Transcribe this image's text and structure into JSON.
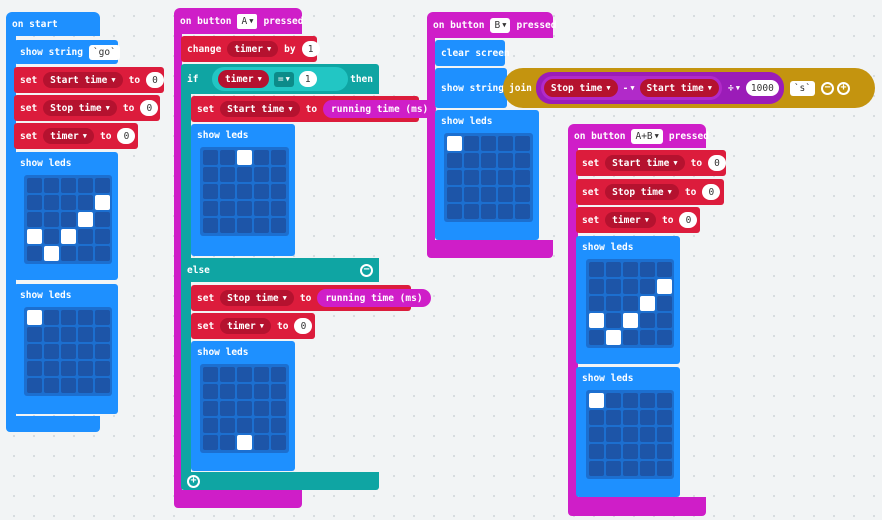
{
  "on_start": {
    "hat": "on start",
    "show_string": "show string",
    "go_value": "go",
    "set1": {
      "keyword": "set",
      "var": "Start time",
      "to": "to",
      "value": "0"
    },
    "set2": {
      "keyword": "set",
      "var": "Stop time",
      "to": "to",
      "value": "0"
    },
    "set3": {
      "keyword": "set",
      "var": "timer",
      "to": "to",
      "value": "0"
    },
    "show_leds_1": "show leds",
    "leds_1": [
      [
        0,
        0,
        0,
        0,
        0
      ],
      [
        0,
        0,
        0,
        0,
        1
      ],
      [
        0,
        0,
        0,
        1,
        0
      ],
      [
        1,
        0,
        1,
        0,
        0
      ],
      [
        0,
        1,
        0,
        0,
        0
      ]
    ],
    "show_leds_2": "show leds",
    "leds_2": [
      [
        1,
        0,
        0,
        0,
        0
      ],
      [
        0,
        0,
        0,
        0,
        0
      ],
      [
        0,
        0,
        0,
        0,
        0
      ],
      [
        0,
        0,
        0,
        0,
        0
      ],
      [
        0,
        0,
        0,
        0,
        0
      ]
    ]
  },
  "button_a": {
    "hat_prefix": "on button",
    "button": "A",
    "hat_suffix": "pressed",
    "change": {
      "keyword": "change",
      "var": "timer",
      "by": "by",
      "value": "1"
    },
    "if": {
      "keyword": "if",
      "var": "timer",
      "op": "=",
      "value": "1",
      "then": "then"
    },
    "set_start": {
      "keyword": "set",
      "var": "Start time",
      "to": "to",
      "reporter": "running time (ms)"
    },
    "show_leds_if": "show leds",
    "leds_if": [
      [
        0,
        0,
        1,
        0,
        0
      ],
      [
        0,
        0,
        0,
        0,
        0
      ],
      [
        0,
        0,
        0,
        0,
        0
      ],
      [
        0,
        0,
        0,
        0,
        0
      ],
      [
        0,
        0,
        0,
        0,
        0
      ]
    ],
    "else": "else",
    "set_stop": {
      "keyword": "set",
      "var": "Stop time",
      "to": "to",
      "reporter": "running time (ms)"
    },
    "set_timer": {
      "keyword": "set",
      "var": "timer",
      "to": "to",
      "value": "0"
    },
    "show_leds_else": "show leds",
    "leds_else": [
      [
        0,
        0,
        0,
        0,
        0
      ],
      [
        0,
        0,
        0,
        0,
        0
      ],
      [
        0,
        0,
        0,
        0,
        0
      ],
      [
        0,
        0,
        0,
        0,
        0
      ],
      [
        0,
        0,
        1,
        0,
        0
      ]
    ]
  },
  "button_b": {
    "hat_prefix": "on button",
    "button": "B",
    "hat_suffix": "pressed",
    "clear_screen": "clear screen",
    "show_string": "show string",
    "join": "join",
    "stop_time": "Stop time",
    "minus": "-",
    "start_time": "Start time",
    "divide": "÷",
    "divisor": "1000",
    "unit": "s",
    "show_leds": "show leds",
    "leds": [
      [
        1,
        0,
        0,
        0,
        0
      ],
      [
        0,
        0,
        0,
        0,
        0
      ],
      [
        0,
        0,
        0,
        0,
        0
      ],
      [
        0,
        0,
        0,
        0,
        0
      ],
      [
        0,
        0,
        0,
        0,
        0
      ]
    ]
  },
  "button_ab": {
    "hat_prefix": "on button",
    "button": "A+B",
    "hat_suffix": "pressed",
    "set1": {
      "keyword": "set",
      "var": "Start time",
      "to": "to",
      "value": "0"
    },
    "set2": {
      "keyword": "set",
      "var": "Stop time",
      "to": "to",
      "value": "0"
    },
    "set3": {
      "keyword": "set",
      "var": "timer",
      "to": "to",
      "value": "0"
    },
    "show_leds_1": "show leds",
    "leds_1": [
      [
        0,
        0,
        0,
        0,
        0
      ],
      [
        0,
        0,
        0,
        0,
        1
      ],
      [
        0,
        0,
        0,
        1,
        0
      ],
      [
        1,
        0,
        1,
        0,
        0
      ],
      [
        0,
        1,
        0,
        0,
        0
      ]
    ],
    "show_leds_2": "show leds",
    "leds_2": [
      [
        1,
        0,
        0,
        0,
        0
      ],
      [
        0,
        0,
        0,
        0,
        0
      ],
      [
        0,
        0,
        0,
        0,
        0
      ],
      [
        0,
        0,
        0,
        0,
        0
      ],
      [
        0,
        0,
        0,
        0,
        0
      ]
    ]
  },
  "colors": {
    "basic": "#1e90ff",
    "input": "#cf1ec8",
    "variables": "#dc1c3c",
    "logic": "#0fa5a3",
    "text": "#c4940f"
  }
}
